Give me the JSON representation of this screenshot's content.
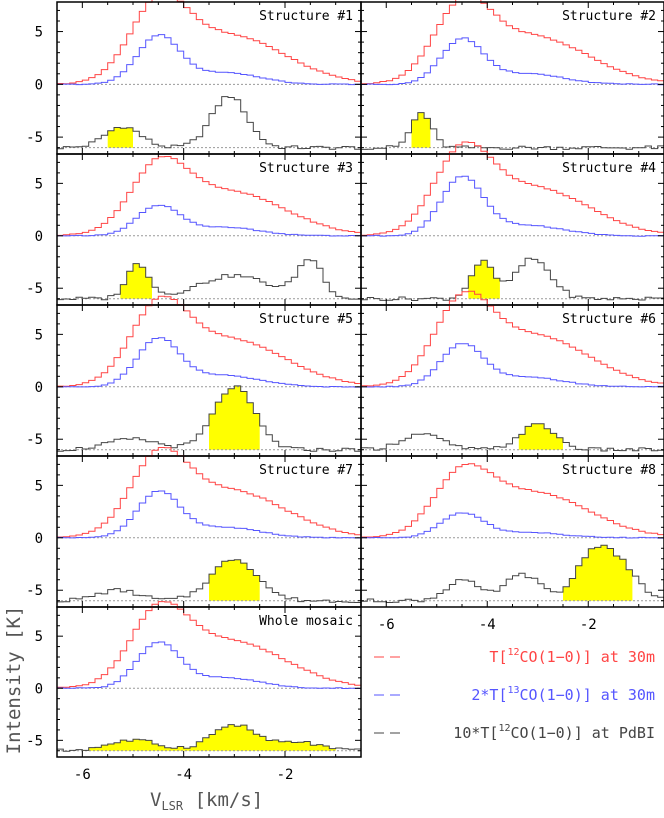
{
  "figure": {
    "ylabel": "Intensity [K]",
    "xlabel_main": "V",
    "xlabel_sub": "LSR",
    "xlabel_unit": " [km/s]",
    "legend": [
      {
        "prefix": "T[",
        "sup": "12",
        "rest": "CO(1−0)] at 30m",
        "color": "#ff4444"
      },
      {
        "prefix": "2*T[",
        "sup": "13",
        "rest": "CO(1−0)] at 30m",
        "color": "#5555ff"
      },
      {
        "prefix": "10*T[",
        "sup": "12",
        "rest": "CO(1−0)] at PdBI",
        "color": "#444444"
      }
    ]
  },
  "chart_data": {
    "type": "line",
    "xlim": [
      -6.5,
      -0.5
    ],
    "ylim": [
      -6.6,
      7.8
    ],
    "xticks": [
      -6,
      -4,
      -2
    ],
    "yticks": [
      -5,
      0,
      5
    ],
    "colors": {
      "co12_30m": "#ff4444",
      "co13_30m": "#5555ff",
      "pdbi": "#444444",
      "fill": "#ffff00",
      "zero_line": "#999999"
    },
    "panels": [
      {
        "title": "Structure #1",
        "red_peaks": [
          [
            -4.5,
            6.5,
            0.55
          ],
          [
            -3.1,
            4.6,
            1.1
          ]
        ],
        "blue_peaks": [
          [
            -4.5,
            4.5,
            0.42
          ],
          [
            -3.2,
            1.1,
            0.7
          ]
        ],
        "pdbi_base": -6.0,
        "pdbi_bumps": [
          [
            -5.2,
            2.0,
            0.35
          ],
          [
            -3.1,
            4.9,
            0.35
          ]
        ],
        "fill_range": [
          -5.5,
          -4.9
        ]
      },
      {
        "title": "Structure #2",
        "red_peaks": [
          [
            -4.5,
            6.3,
            0.55
          ],
          [
            -3.1,
            4.5,
            1.1
          ]
        ],
        "blue_peaks": [
          [
            -4.5,
            4.2,
            0.42
          ],
          [
            -3.2,
            1.0,
            0.7
          ]
        ],
        "pdbi_base": -6.0,
        "pdbi_bumps": [
          [
            -5.3,
            3.3,
            0.2
          ]
        ],
        "fill_range": [
          -5.55,
          -5.1
        ]
      },
      {
        "title": "Structure #3",
        "red_peaks": [
          [
            -4.5,
            5.6,
            0.55
          ],
          [
            -3.1,
            4.2,
            1.1
          ]
        ],
        "blue_peaks": [
          [
            -4.5,
            2.8,
            0.42
          ],
          [
            -3.2,
            0.8,
            0.7
          ]
        ],
        "pdbi_base": -6.0,
        "pdbi_bumps": [
          [
            -4.9,
            3.3,
            0.22
          ],
          [
            -3.0,
            2.2,
            0.7
          ],
          [
            -1.5,
            3.6,
            0.25
          ]
        ],
        "fill_range": [
          -5.25,
          -4.6
        ]
      },
      {
        "title": "Structure #4",
        "red_peaks": [
          [
            -4.5,
            6.8,
            0.55
          ],
          [
            -3.1,
            4.6,
            1.1
          ]
        ],
        "blue_peaks": [
          [
            -4.5,
            5.5,
            0.42
          ],
          [
            -3.2,
            1.0,
            0.7
          ]
        ],
        "pdbi_base": -6.0,
        "pdbi_bumps": [
          [
            -4.1,
            3.5,
            0.22
          ],
          [
            -3.1,
            3.8,
            0.35
          ]
        ],
        "fill_range": [
          -4.45,
          -3.7
        ]
      },
      {
        "title": "Structure #5",
        "red_peaks": [
          [
            -4.5,
            6.5,
            0.55
          ],
          [
            -3.1,
            4.5,
            1.1
          ]
        ],
        "blue_peaks": [
          [
            -4.5,
            4.5,
            0.42
          ],
          [
            -3.2,
            1.1,
            0.7
          ]
        ],
        "pdbi_base": -6.0,
        "pdbi_bumps": [
          [
            -5.0,
            1.0,
            0.5
          ],
          [
            -3.0,
            6.0,
            0.4
          ]
        ],
        "fill_range": [
          -3.6,
          -2.4
        ]
      },
      {
        "title": "Structure #6",
        "red_peaks": [
          [
            -4.5,
            6.8,
            0.55
          ],
          [
            -3.1,
            4.9,
            1.1
          ]
        ],
        "blue_peaks": [
          [
            -4.5,
            4.0,
            0.42
          ],
          [
            -3.2,
            0.9,
            0.7
          ]
        ],
        "pdbi_base": -6.0,
        "pdbi_bumps": [
          [
            -5.3,
            1.5,
            0.4
          ],
          [
            -3.0,
            2.4,
            0.35
          ]
        ],
        "fill_range": [
          -3.4,
          -2.4
        ]
      },
      {
        "title": "Structure #7",
        "red_peaks": [
          [
            -4.5,
            6.5,
            0.55
          ],
          [
            -3.1,
            4.5,
            1.1
          ]
        ],
        "blue_peaks": [
          [
            -4.5,
            4.3,
            0.42
          ],
          [
            -3.2,
            1.0,
            0.7
          ]
        ],
        "pdbi_base": -6.0,
        "pdbi_bumps": [
          [
            -5.3,
            1.0,
            0.4
          ],
          [
            -3.0,
            4.0,
            0.45
          ]
        ],
        "fill_range": [
          -3.5,
          -2.4
        ]
      },
      {
        "title": "Structure #8",
        "red_peaks": [
          [
            -4.5,
            5.0,
            0.55
          ],
          [
            -3.1,
            4.3,
            1.1
          ]
        ],
        "blue_peaks": [
          [
            -4.5,
            2.3,
            0.42
          ],
          [
            -3.2,
            0.5,
            0.7
          ]
        ],
        "pdbi_base": -6.0,
        "pdbi_bumps": [
          [
            -4.5,
            2.0,
            0.3
          ],
          [
            -3.3,
            2.5,
            0.35
          ],
          [
            -2.0,
            2.8,
            0.3
          ],
          [
            -1.5,
            4.0,
            0.4
          ]
        ],
        "fill_range": [
          -2.5,
          -1.1
        ]
      },
      {
        "title": "Whole mosaic",
        "red_peaks": [
          [
            -4.5,
            6.2,
            0.55
          ],
          [
            -3.1,
            4.5,
            1.1
          ]
        ],
        "blue_peaks": [
          [
            -4.5,
            4.3,
            0.42
          ],
          [
            -3.2,
            1.0,
            0.7
          ]
        ],
        "pdbi_base": -6.0,
        "pdbi_bumps": [
          [
            -5.0,
            1.0,
            0.5
          ],
          [
            -3.0,
            2.5,
            0.45
          ],
          [
            -1.7,
            0.8,
            0.4
          ]
        ],
        "fill_range": [
          -6.1,
          -1.0
        ]
      }
    ]
  }
}
